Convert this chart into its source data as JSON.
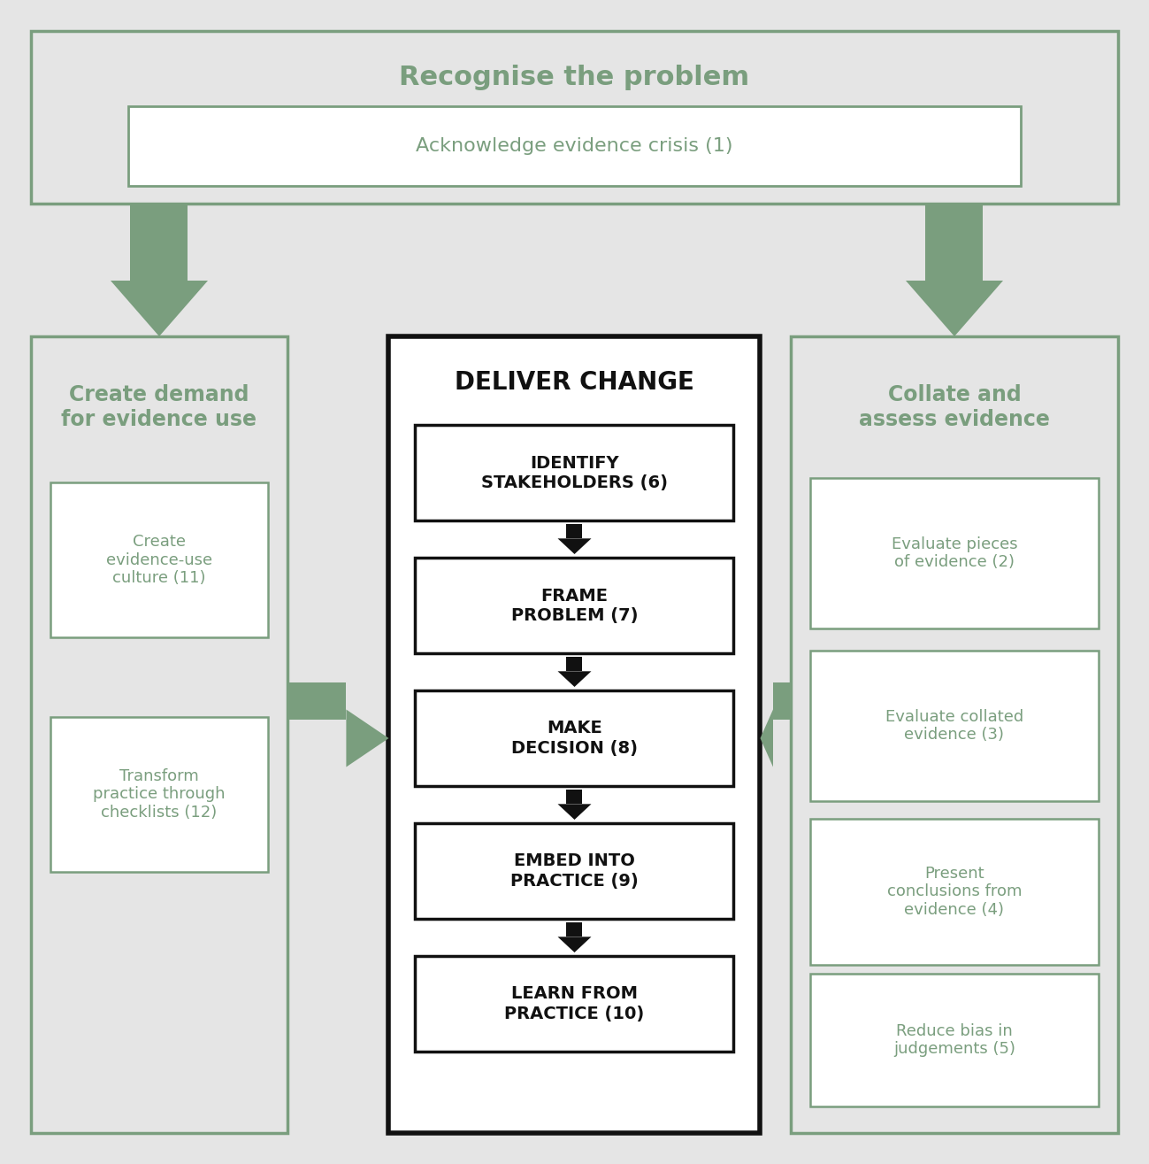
{
  "bg_color": "#e5e5e5",
  "green_border": "#7a9e7e",
  "green_text": "#7a9e7e",
  "black_text": "#111111",
  "white_fill": "#ffffff",
  "grey_fill": "#e5e5e5",
  "dark_border": "#111111",
  "arrow_green": "#7a9e7e",
  "arrow_black": "#111111",
  "top_box": {
    "title": "Recognise the problem",
    "sub_label": "Acknowledge evidence crisis (1)"
  },
  "left_box": {
    "title": "Create demand\nfor evidence use",
    "items": [
      "Create\nevidence-use\nculture (11)",
      "Transform\npractice through\nchecklists (12)"
    ]
  },
  "right_box": {
    "title": "Collate and\nassess evidence",
    "items": [
      "Evaluate pieces\nof evidence (2)",
      "Evaluate collated\nevidence (3)",
      "Present\nconclusions from\nevidence (4)",
      "Reduce bias in\njudgements (5)"
    ]
  },
  "center_box": {
    "title": "DELIVER CHANGE",
    "items": [
      "IDENTIFY\nSTAKEHOLDERS (6)",
      "FRAME\nPROBLEM (7)",
      "MAKE\nDECISION (8)",
      "EMBED INTO\nPRACTICE (9)",
      "LEARN FROM\nPRACTICE (10)"
    ]
  }
}
